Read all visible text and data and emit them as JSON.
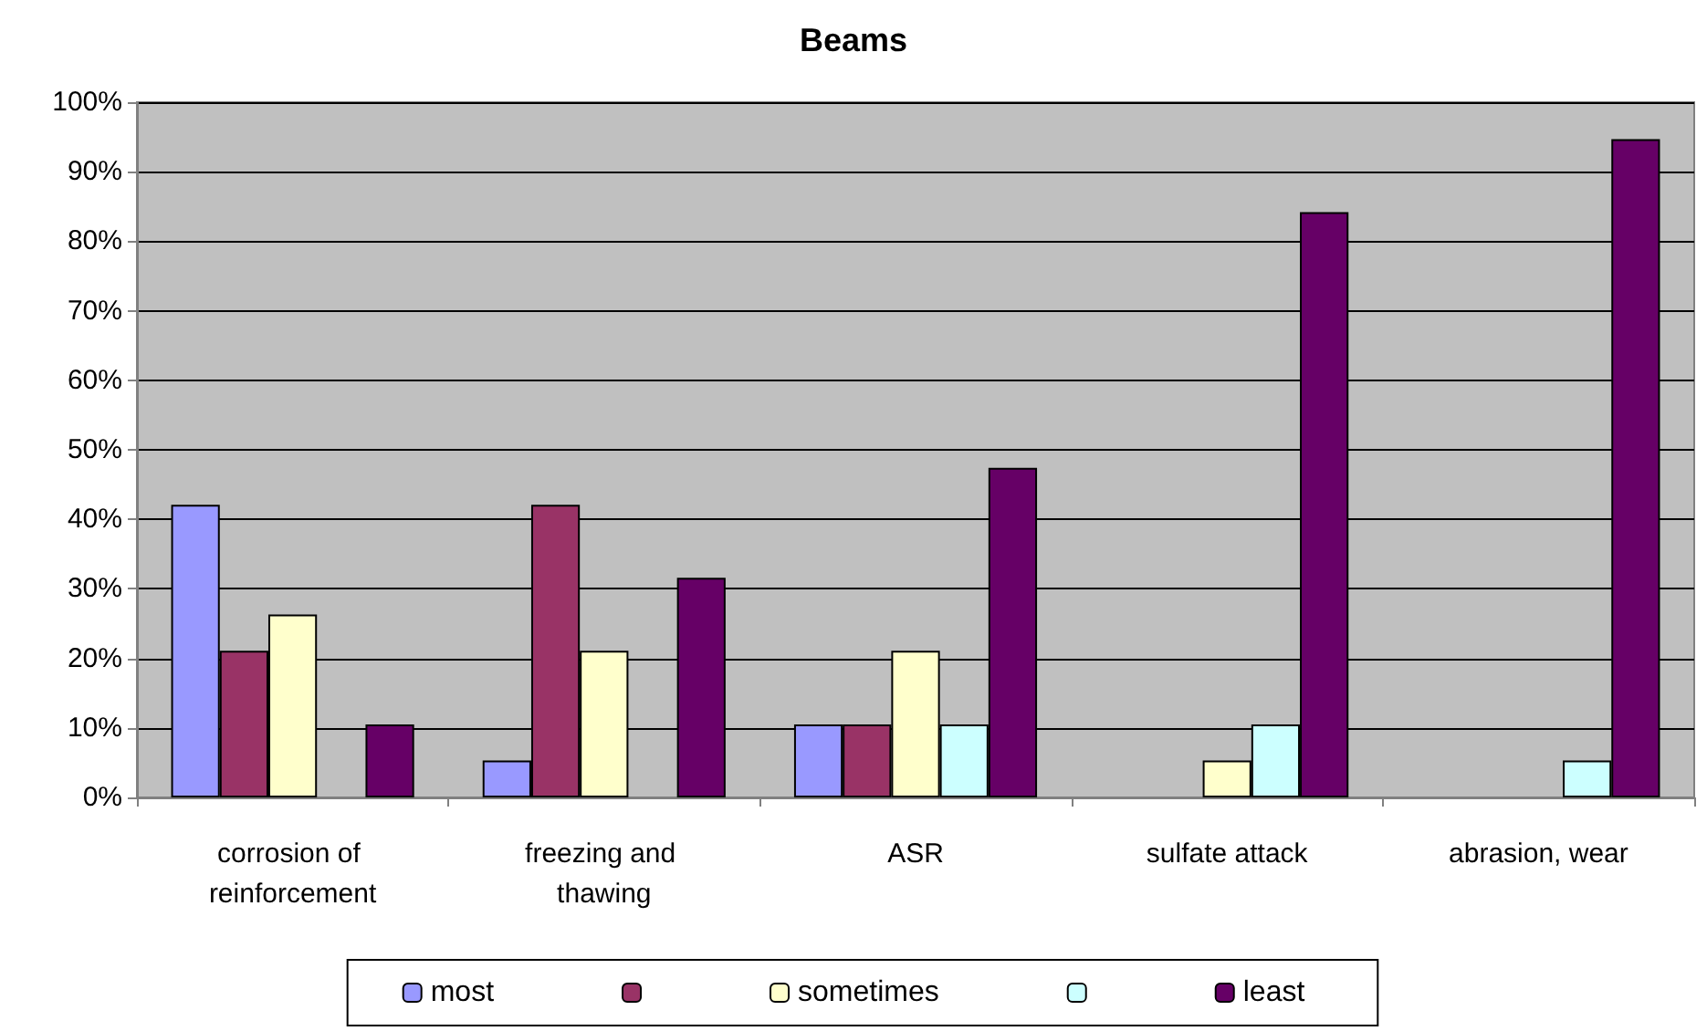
{
  "chart_data": {
    "type": "bar",
    "title": "Beams",
    "categories": [
      "corrosion of reinforcement",
      "freezing and thawing",
      "ASR",
      "sulfate attack",
      "abrasion, wear"
    ],
    "series": [
      {
        "name": "most",
        "color": "#9999ff",
        "values": [
          42.1,
          5.3,
          10.5,
          0,
          0
        ]
      },
      {
        "color": "#993366",
        "values": [
          21.1,
          42.1,
          10.5,
          0,
          0
        ]
      },
      {
        "name": "sometimes",
        "color": "#ffffcc",
        "values": [
          26.3,
          21.1,
          21.1,
          5.3,
          0
        ]
      },
      {
        "color": "#ccffff",
        "values": [
          0,
          0,
          10.5,
          10.5,
          5.3
        ]
      },
      {
        "name": "least",
        "color": "#660066",
        "values": [
          10.5,
          31.6,
          47.4,
          84.2,
          94.7
        ]
      }
    ],
    "ylim": [
      0,
      100
    ],
    "yticks": [
      {
        "value": 0,
        "label": "0%"
      },
      {
        "value": 10,
        "label": "10%"
      },
      {
        "value": 20,
        "label": "20%"
      },
      {
        "value": 30,
        "label": "30%"
      },
      {
        "value": 40,
        "label": "40%"
      },
      {
        "value": 50,
        "label": "50%"
      },
      {
        "value": 60,
        "label": "60%"
      },
      {
        "value": 70,
        "label": "70%"
      },
      {
        "value": 80,
        "label": "80%"
      },
      {
        "value": 90,
        "label": "90%"
      },
      {
        "value": 100,
        "label": "100%"
      }
    ],
    "grid": "y",
    "legend": "bottom"
  }
}
